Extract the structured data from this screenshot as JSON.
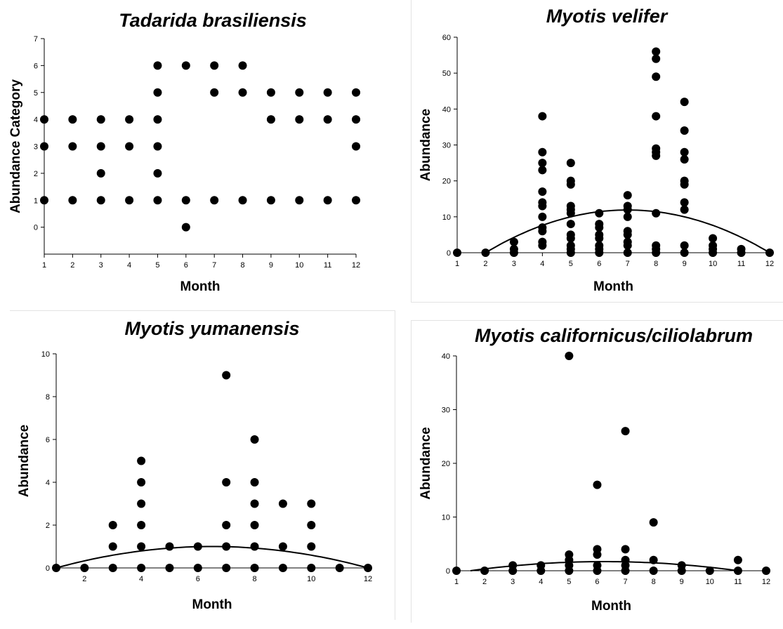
{
  "chart_data": [
    {
      "type": "scatter",
      "title": "Tadarida brasiliensis",
      "xlabel": "Month",
      "ylabel": "Abundance Category",
      "xlim": [
        1,
        12
      ],
      "ylim": [
        -1,
        7
      ],
      "xticks": [
        1,
        2,
        3,
        4,
        5,
        6,
        7,
        8,
        9,
        10,
        11,
        12
      ],
      "yticks": [
        0,
        1,
        2,
        3,
        4,
        5,
        6,
        7
      ],
      "points": [
        [
          1,
          4
        ],
        [
          1,
          3
        ],
        [
          1,
          1
        ],
        [
          2,
          4
        ],
        [
          2,
          3
        ],
        [
          2,
          1
        ],
        [
          3,
          4
        ],
        [
          3,
          3
        ],
        [
          3,
          2
        ],
        [
          3,
          1
        ],
        [
          4,
          4
        ],
        [
          4,
          3
        ],
        [
          4,
          1
        ],
        [
          5,
          6
        ],
        [
          5,
          5
        ],
        [
          5,
          4
        ],
        [
          5,
          3
        ],
        [
          5,
          2
        ],
        [
          5,
          1
        ],
        [
          6,
          6
        ],
        [
          6,
          1
        ],
        [
          6,
          0
        ],
        [
          7,
          6
        ],
        [
          7,
          5
        ],
        [
          7,
          1
        ],
        [
          8,
          6
        ],
        [
          8,
          5
        ],
        [
          8,
          1
        ],
        [
          9,
          5
        ],
        [
          9,
          4
        ],
        [
          9,
          1
        ],
        [
          10,
          5
        ],
        [
          10,
          4
        ],
        [
          10,
          1
        ],
        [
          11,
          5
        ],
        [
          11,
          4
        ],
        [
          11,
          1
        ],
        [
          12,
          5
        ],
        [
          12,
          4
        ],
        [
          12,
          3
        ],
        [
          12,
          1
        ]
      ],
      "fit": null
    },
    {
      "type": "scatter",
      "title": "Myotis velifer",
      "xlabel": "Month",
      "ylabel": "Abundance",
      "xlim": [
        1,
        12
      ],
      "ylim": [
        0,
        60
      ],
      "xticks": [
        1,
        2,
        3,
        4,
        5,
        6,
        7,
        8,
        9,
        10,
        11,
        12
      ],
      "yticks": [
        0,
        10,
        20,
        30,
        40,
        50,
        60
      ],
      "points": [
        [
          1,
          0
        ],
        [
          2,
          0
        ],
        [
          3,
          3
        ],
        [
          3,
          1
        ],
        [
          3,
          0
        ],
        [
          4,
          38
        ],
        [
          4,
          28
        ],
        [
          4,
          25
        ],
        [
          4,
          23
        ],
        [
          4,
          17
        ],
        [
          4,
          14
        ],
        [
          4,
          13
        ],
        [
          4,
          10
        ],
        [
          4,
          7
        ],
        [
          4,
          6
        ],
        [
          4,
          3
        ],
        [
          4,
          2
        ],
        [
          5,
          25
        ],
        [
          5,
          20
        ],
        [
          5,
          19
        ],
        [
          5,
          13
        ],
        [
          5,
          12
        ],
        [
          5,
          11
        ],
        [
          5,
          8
        ],
        [
          5,
          5
        ],
        [
          5,
          4
        ],
        [
          5,
          2
        ],
        [
          5,
          1
        ],
        [
          5,
          0
        ],
        [
          6,
          11
        ],
        [
          6,
          8
        ],
        [
          6,
          7
        ],
        [
          6,
          5
        ],
        [
          6,
          4
        ],
        [
          6,
          2
        ],
        [
          6,
          1
        ],
        [
          6,
          0
        ],
        [
          7,
          16
        ],
        [
          7,
          13
        ],
        [
          7,
          12
        ],
        [
          7,
          10
        ],
        [
          7,
          6
        ],
        [
          7,
          5
        ],
        [
          7,
          3
        ],
        [
          7,
          2
        ],
        [
          7,
          0
        ],
        [
          8,
          56
        ],
        [
          8,
          54
        ],
        [
          8,
          49
        ],
        [
          8,
          38
        ],
        [
          8,
          29
        ],
        [
          8,
          28
        ],
        [
          8,
          27
        ],
        [
          8,
          11
        ],
        [
          8,
          2
        ],
        [
          8,
          1
        ],
        [
          8,
          0
        ],
        [
          9,
          42
        ],
        [
          9,
          34
        ],
        [
          9,
          28
        ],
        [
          9,
          26
        ],
        [
          9,
          20
        ],
        [
          9,
          19
        ],
        [
          9,
          14
        ],
        [
          9,
          12
        ],
        [
          9,
          2
        ],
        [
          9,
          0
        ],
        [
          10,
          4
        ],
        [
          10,
          2
        ],
        [
          10,
          1
        ],
        [
          10,
          0
        ],
        [
          11,
          1
        ],
        [
          11,
          0
        ],
        [
          12,
          0
        ]
      ],
      "fit": {
        "type": "quadratic",
        "x_range": [
          2,
          12
        ],
        "vertex": [
          7,
          11.9
        ],
        "zero_at": [
          2,
          12
        ]
      }
    },
    {
      "type": "scatter",
      "title": "Myotis yumanensis",
      "xlabel": "Month",
      "ylabel": "Abundance",
      "xlim": [
        1,
        12
      ],
      "ylim": [
        0,
        10
      ],
      "xticks": [
        2,
        4,
        6,
        8,
        10,
        12
      ],
      "yticks": [
        0,
        2,
        4,
        6,
        8,
        10
      ],
      "points": [
        [
          1,
          0
        ],
        [
          2,
          0
        ],
        [
          3,
          2
        ],
        [
          3,
          1
        ],
        [
          3,
          0
        ],
        [
          4,
          5
        ],
        [
          4,
          4
        ],
        [
          4,
          3
        ],
        [
          4,
          2
        ],
        [
          4,
          1
        ],
        [
          4,
          0
        ],
        [
          5,
          1
        ],
        [
          5,
          0
        ],
        [
          6,
          1
        ],
        [
          6,
          0
        ],
        [
          7,
          9
        ],
        [
          7,
          4
        ],
        [
          7,
          2
        ],
        [
          7,
          1
        ],
        [
          7,
          0
        ],
        [
          8,
          6
        ],
        [
          8,
          4
        ],
        [
          8,
          3
        ],
        [
          8,
          2
        ],
        [
          8,
          1
        ],
        [
          8,
          0
        ],
        [
          9,
          3
        ],
        [
          9,
          1
        ],
        [
          9,
          0
        ],
        [
          10,
          3
        ],
        [
          10,
          2
        ],
        [
          10,
          1
        ],
        [
          10,
          0
        ],
        [
          11,
          0
        ],
        [
          12,
          0
        ]
      ],
      "fit": {
        "type": "quadratic",
        "x_range": [
          1,
          12
        ],
        "vertex": [
          6.5,
          1.0
        ],
        "zero_at": [
          1,
          12
        ]
      }
    },
    {
      "type": "scatter",
      "title": "Myotis californicus/ciliolabrum",
      "xlabel": "Month",
      "ylabel": "Abundance",
      "xlim": [
        1,
        12
      ],
      "ylim": [
        0,
        40
      ],
      "xticks": [
        1,
        2,
        3,
        4,
        5,
        6,
        7,
        8,
        9,
        10,
        11,
        12
      ],
      "yticks": [
        0,
        10,
        20,
        30,
        40
      ],
      "points": [
        [
          1,
          0
        ],
        [
          2,
          0
        ],
        [
          3,
          1
        ],
        [
          3,
          0
        ],
        [
          4,
          1
        ],
        [
          4,
          0
        ],
        [
          5,
          40
        ],
        [
          5,
          3
        ],
        [
          5,
          2
        ],
        [
          5,
          1
        ],
        [
          5,
          0
        ],
        [
          6,
          16
        ],
        [
          6,
          4
        ],
        [
          6,
          3
        ],
        [
          6,
          1
        ],
        [
          6,
          0
        ],
        [
          7,
          26
        ],
        [
          7,
          4
        ],
        [
          7,
          2
        ],
        [
          7,
          1
        ],
        [
          7,
          0
        ],
        [
          8,
          9
        ],
        [
          8,
          2
        ],
        [
          8,
          0
        ],
        [
          9,
          1
        ],
        [
          9,
          0
        ],
        [
          10,
          0
        ],
        [
          11,
          2
        ],
        [
          11,
          0
        ],
        [
          12,
          0
        ]
      ],
      "fit": {
        "type": "quadratic",
        "x_range": [
          1.5,
          11
        ],
        "vertex": [
          6.25,
          1.7
        ],
        "zero_at": [
          1.5,
          11
        ]
      }
    }
  ]
}
